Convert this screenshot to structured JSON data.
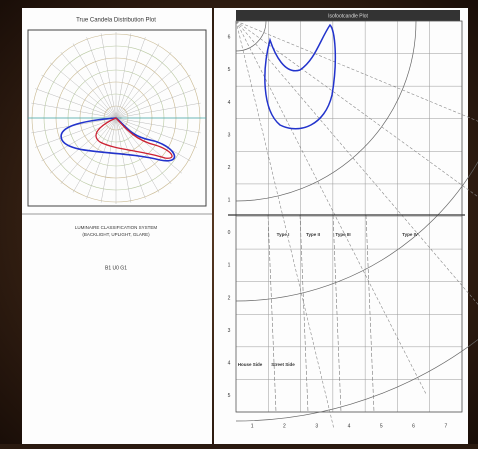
{
  "left_panel": {
    "title": "True Candela Distribution Plot",
    "caption_lines": [
      "LUMINAIRE CLASSIFICATION SYSTEM",
      "(BACKLIGHT, UPLIGHT, GLARE)",
      "B1 U0 G1"
    ]
  },
  "right_panel": {
    "header": "Isofootcandle Plot",
    "type_labels": [
      "Type I",
      "Type II",
      "Type III",
      "Type IV"
    ],
    "side_labels": [
      "House Side",
      "Street Side"
    ],
    "x_axis_labels": [
      "1",
      "2",
      "3",
      "4",
      "5",
      "6",
      "7"
    ],
    "y_axis_labels": [
      "6",
      "5",
      "4",
      "3",
      "2",
      "1",
      "0",
      "1",
      "2",
      "3",
      "4",
      "5"
    ]
  }
}
